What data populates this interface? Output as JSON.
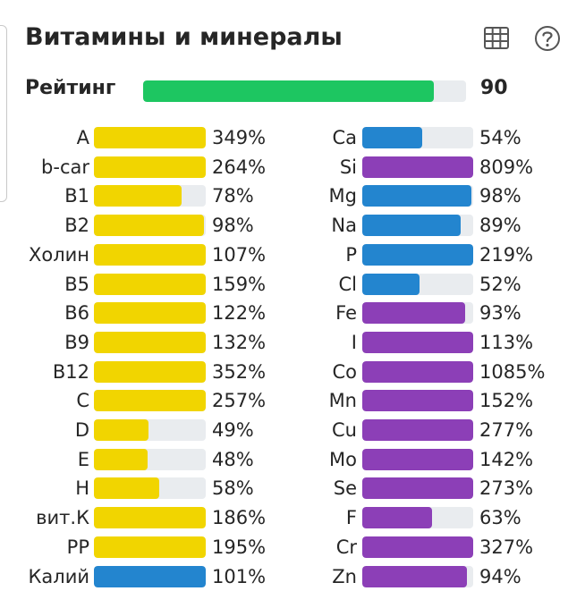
{
  "header": {
    "title": "Витамины и минералы",
    "table_icon": "table-icon",
    "help_icon": "help-circle-icon"
  },
  "rating": {
    "label": "Рейтинг",
    "value": "90",
    "fill_fraction": 0.9,
    "color": "#1dc661"
  },
  "colors": {
    "vitamin": "#f1d500",
    "potassium": "#2385cf",
    "macro_mineral": "#2385cf",
    "micro_mineral": "#8c3fb7",
    "track": "#e9ecef"
  },
  "chart_data": {
    "type": "bar",
    "orientation": "horizontal",
    "unit": "%",
    "full_bar_at_percent": 100,
    "columns": [
      {
        "items": [
          {
            "name": "A",
            "value": 349,
            "label": "349%",
            "color": "#f1d500"
          },
          {
            "name": "b-car",
            "value": 264,
            "label": "264%",
            "color": "#f1d500"
          },
          {
            "name": "B1",
            "value": 78,
            "label": "78%",
            "color": "#f1d500"
          },
          {
            "name": "B2",
            "value": 98,
            "label": "98%",
            "color": "#f1d500"
          },
          {
            "name": "Холин",
            "value": 107,
            "label": "107%",
            "color": "#f1d500"
          },
          {
            "name": "B5",
            "value": 159,
            "label": "159%",
            "color": "#f1d500"
          },
          {
            "name": "B6",
            "value": 122,
            "label": "122%",
            "color": "#f1d500"
          },
          {
            "name": "B9",
            "value": 132,
            "label": "132%",
            "color": "#f1d500"
          },
          {
            "name": "B12",
            "value": 352,
            "label": "352%",
            "color": "#f1d500"
          },
          {
            "name": "C",
            "value": 257,
            "label": "257%",
            "color": "#f1d500"
          },
          {
            "name": "D",
            "value": 49,
            "label": "49%",
            "color": "#f1d500"
          },
          {
            "name": "E",
            "value": 48,
            "label": "48%",
            "color": "#f1d500"
          },
          {
            "name": "H",
            "value": 58,
            "label": "58%",
            "color": "#f1d500"
          },
          {
            "name": "вит.К",
            "value": 186,
            "label": "186%",
            "color": "#f1d500"
          },
          {
            "name": "PP",
            "value": 195,
            "label": "195%",
            "color": "#f1d500"
          },
          {
            "name": "Калий",
            "value": 101,
            "label": "101%",
            "color": "#2385cf"
          }
        ]
      },
      {
        "items": [
          {
            "name": "Ca",
            "value": 54,
            "label": "54%",
            "color": "#2385cf"
          },
          {
            "name": "Si",
            "value": 809,
            "label": "809%",
            "color": "#8c3fb7"
          },
          {
            "name": "Mg",
            "value": 98,
            "label": "98%",
            "color": "#2385cf"
          },
          {
            "name": "Na",
            "value": 89,
            "label": "89%",
            "color": "#2385cf"
          },
          {
            "name": "P",
            "value": 219,
            "label": "219%",
            "color": "#2385cf"
          },
          {
            "name": "Cl",
            "value": 52,
            "label": "52%",
            "color": "#2385cf"
          },
          {
            "name": "Fe",
            "value": 93,
            "label": "93%",
            "color": "#8c3fb7"
          },
          {
            "name": "I",
            "value": 113,
            "label": "113%",
            "color": "#8c3fb7"
          },
          {
            "name": "Co",
            "value": 1085,
            "label": "1085%",
            "color": "#8c3fb7"
          },
          {
            "name": "Mn",
            "value": 152,
            "label": "152%",
            "color": "#8c3fb7"
          },
          {
            "name": "Cu",
            "value": 277,
            "label": "277%",
            "color": "#8c3fb7"
          },
          {
            "name": "Mo",
            "value": 142,
            "label": "142%",
            "color": "#8c3fb7"
          },
          {
            "name": "Se",
            "value": 273,
            "label": "273%",
            "color": "#8c3fb7"
          },
          {
            "name": "F",
            "value": 63,
            "label": "63%",
            "color": "#8c3fb7"
          },
          {
            "name": "Cr",
            "value": 327,
            "label": "327%",
            "color": "#8c3fb7"
          },
          {
            "name": "Zn",
            "value": 94,
            "label": "94%",
            "color": "#8c3fb7"
          }
        ]
      }
    ]
  }
}
